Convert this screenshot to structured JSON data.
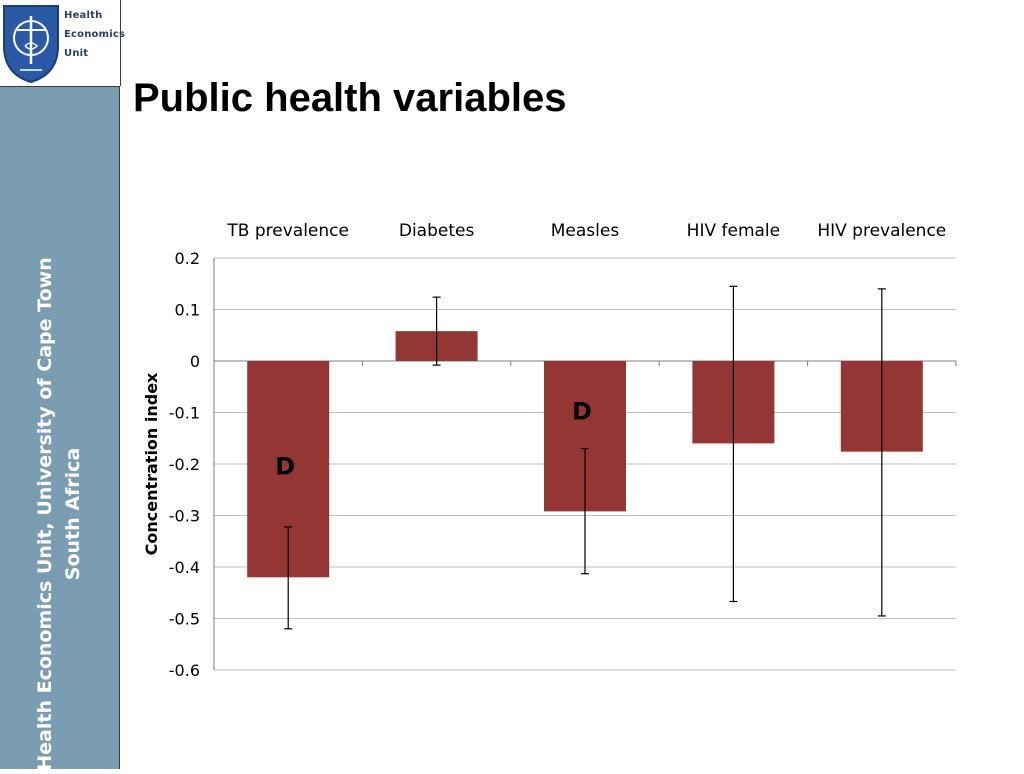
{
  "slide": {
    "title": "Public health variables",
    "sidebar_line1": "Health Economics Unit, University of Cape Town",
    "sidebar_line2": "South Africa",
    "logo_text": "Health\nEconomics\nUnit"
  },
  "colors": {
    "bar": "#943634",
    "sidebar": "#7b9db1",
    "gridline": "#bfbfbf",
    "logo_shield": "#2a5aa6"
  },
  "chart_data": {
    "type": "bar",
    "title": "",
    "xlabel": "",
    "ylabel": "Concentration index",
    "ylim": [
      -0.6,
      0.2
    ],
    "ytick_step": 0.1,
    "grid": true,
    "category_labels_position": "top",
    "categories": [
      "TB prevalence",
      "Diabetes",
      "Measles",
      "HIV female",
      "HIV prevalence"
    ],
    "values": [
      -0.42,
      0.058,
      -0.292,
      -0.16,
      -0.176
    ],
    "error_low": [
      -0.52,
      -0.008,
      -0.413,
      -0.467,
      -0.495
    ],
    "error_high": [
      -0.322,
      0.124,
      -0.17,
      0.145,
      0.14
    ],
    "ytick_labels": [
      "0.2",
      "0.1",
      "0",
      "-0.1",
      "-0.2",
      "-0.3",
      "-0.4",
      "-0.5",
      "-0.6"
    ],
    "annotations": [
      {
        "category": "TB prevalence",
        "text": "D",
        "y": -0.205
      },
      {
        "category": "Measles",
        "text": "D",
        "y": -0.098
      }
    ]
  }
}
